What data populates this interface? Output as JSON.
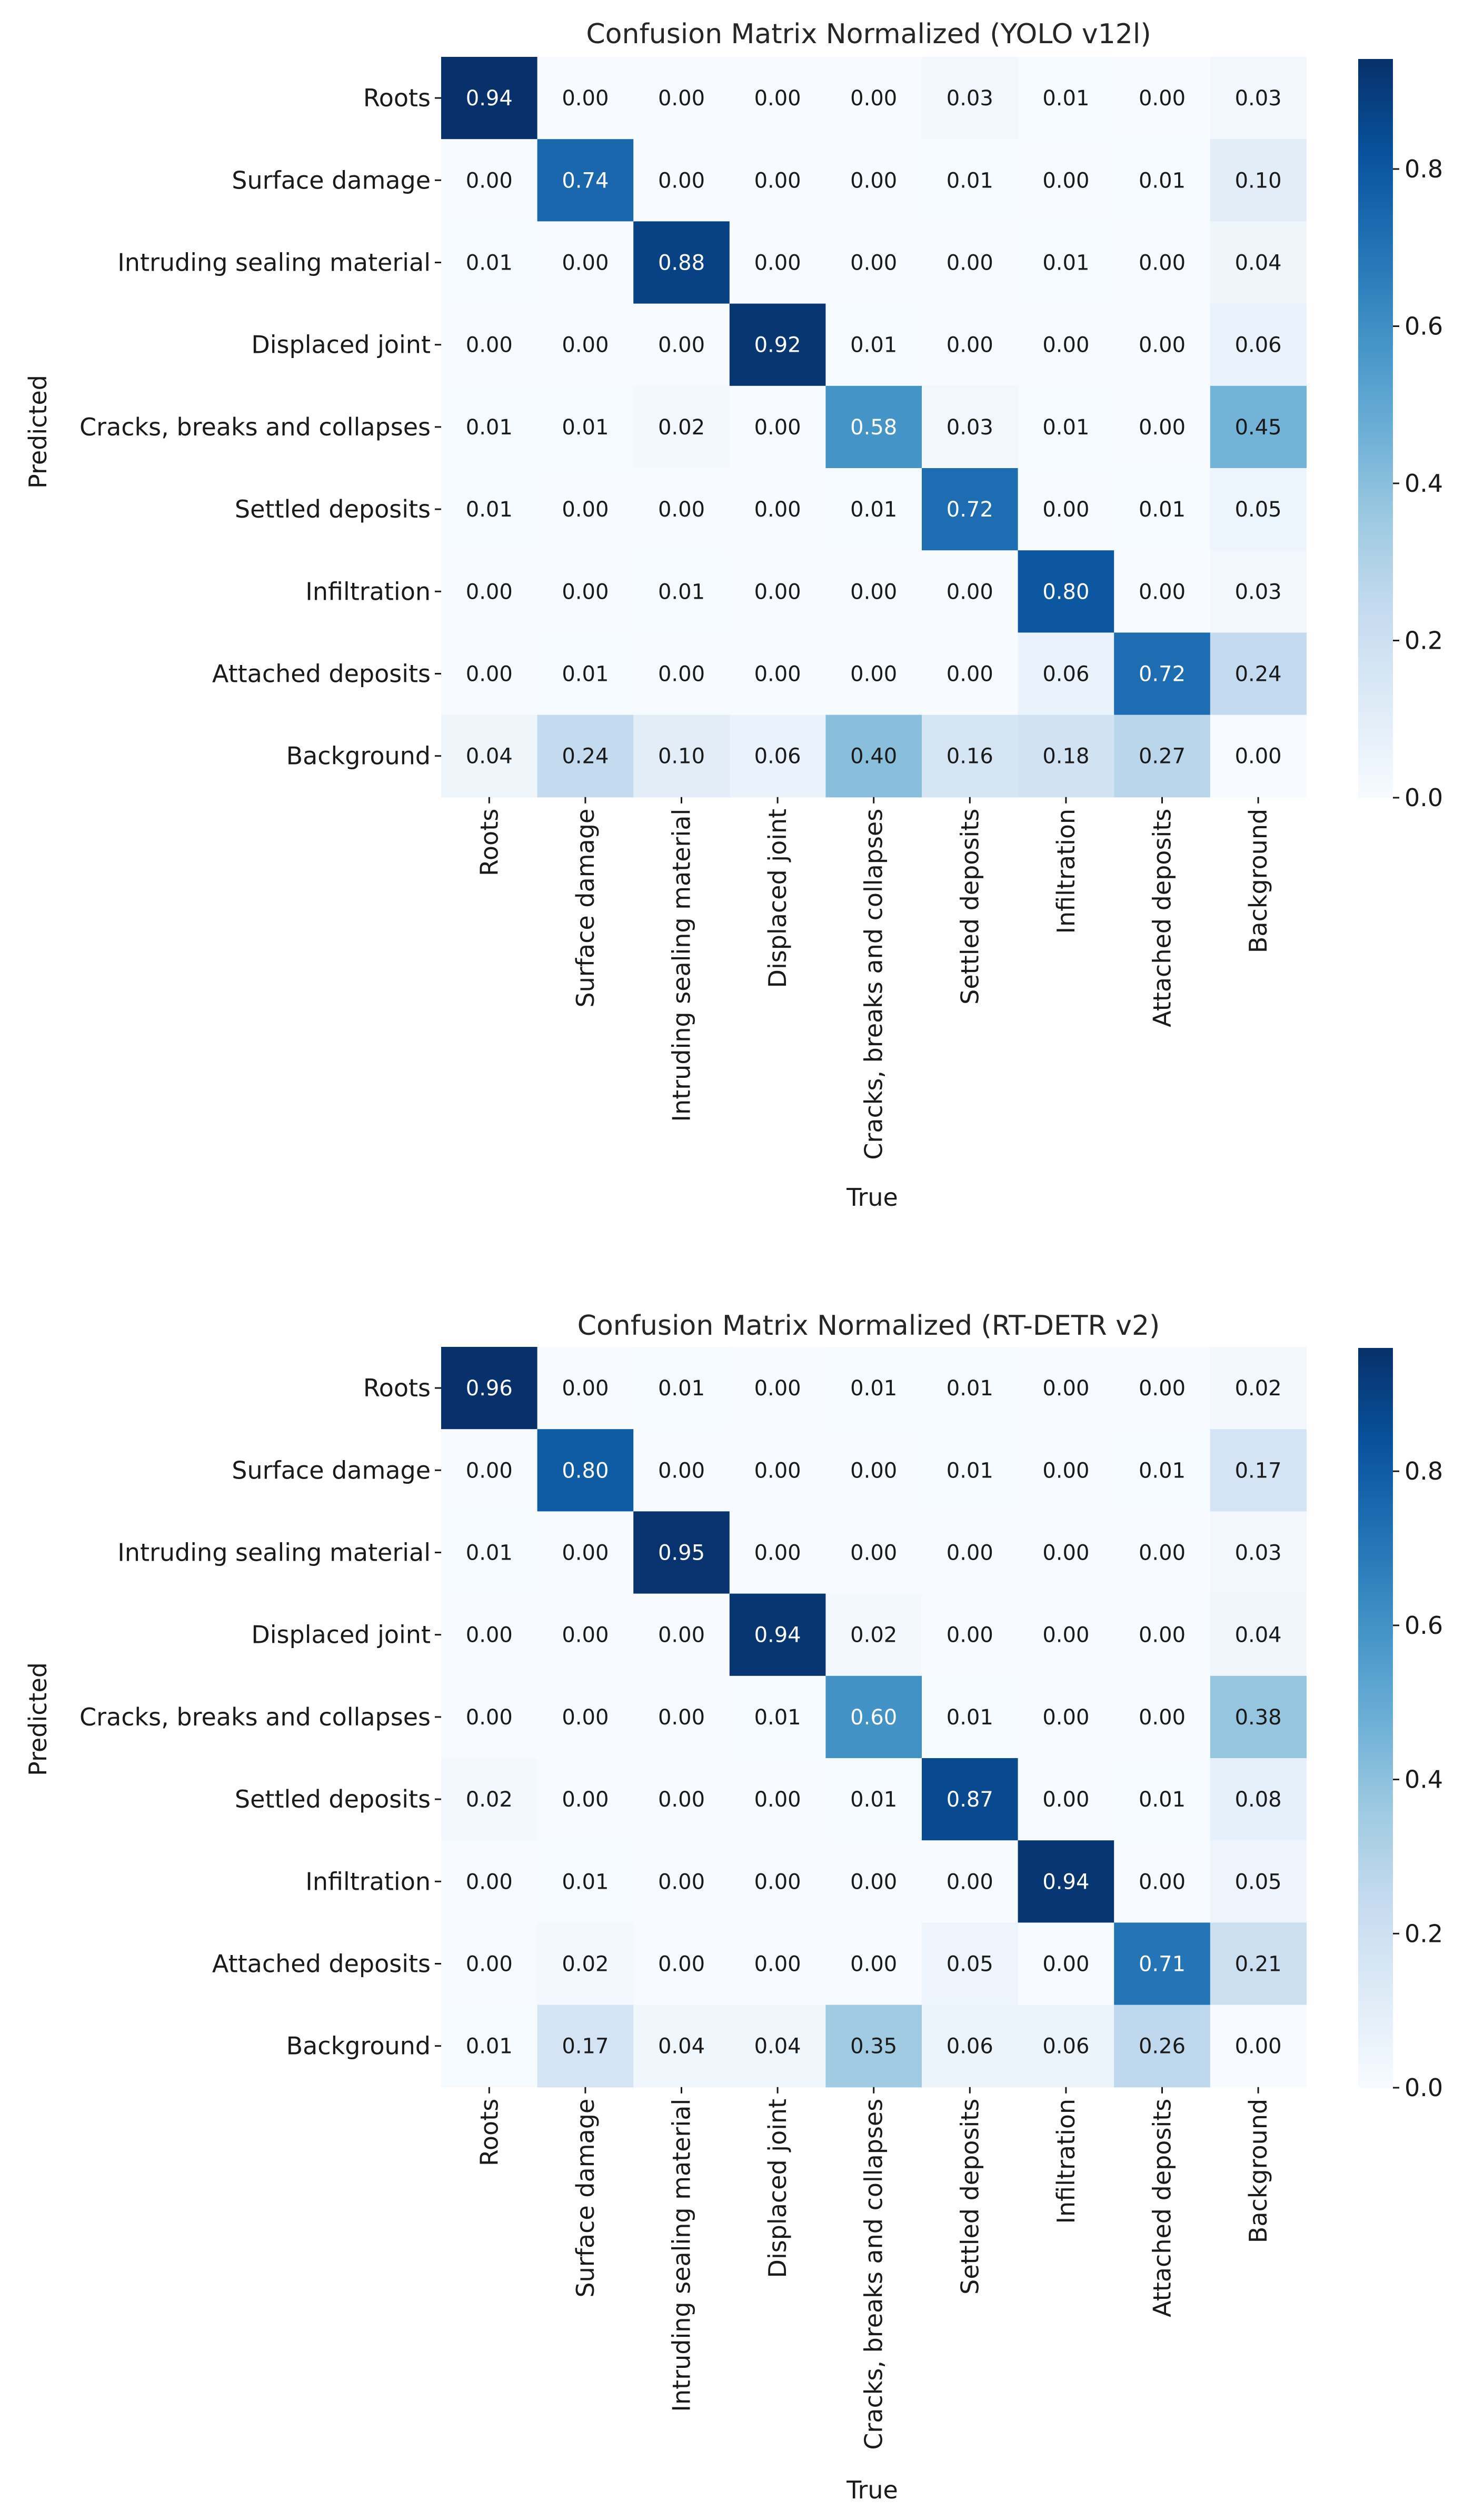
{
  "chart_data": [
    {
      "type": "heatmap",
      "title": "Confusion Matrix Normalized (YOLO v12l)",
      "xlabel": "True",
      "ylabel": "Predicted",
      "row_labels": [
        "Roots",
        "Surface damage",
        "Intruding sealing material",
        "Displaced joint",
        "Cracks, breaks and collapses",
        "Settled deposits",
        "Infiltration",
        "Attached deposits",
        "Background"
      ],
      "col_labels": [
        "Roots",
        "Surface damage",
        "Intruding sealing material",
        "Displaced joint",
        "Cracks, breaks and collapses",
        "Settled deposits",
        "Infiltration",
        "Attached deposits",
        "Background"
      ],
      "values": [
        [
          0.94,
          0.0,
          0.0,
          0.0,
          0.0,
          0.03,
          0.01,
          0.0,
          0.03
        ],
        [
          0.0,
          0.74,
          0.0,
          0.0,
          0.0,
          0.01,
          0.0,
          0.01,
          0.1
        ],
        [
          0.01,
          0.0,
          0.88,
          0.0,
          0.0,
          0.0,
          0.01,
          0.0,
          0.04
        ],
        [
          0.0,
          0.0,
          0.0,
          0.92,
          0.01,
          0.0,
          0.0,
          0.0,
          0.06
        ],
        [
          0.01,
          0.01,
          0.02,
          0.0,
          0.58,
          0.03,
          0.01,
          0.0,
          0.45
        ],
        [
          0.01,
          0.0,
          0.0,
          0.0,
          0.01,
          0.72,
          0.0,
          0.01,
          0.05
        ],
        [
          0.0,
          0.0,
          0.01,
          0.0,
          0.0,
          0.0,
          0.8,
          0.0,
          0.03
        ],
        [
          0.0,
          0.01,
          0.0,
          0.0,
          0.0,
          0.0,
          0.06,
          0.72,
          0.24
        ],
        [
          0.04,
          0.24,
          0.1,
          0.06,
          0.4,
          0.16,
          0.18,
          0.27,
          0.0
        ]
      ],
      "value_labels": [
        [
          "0.94",
          "0.00",
          "0.00",
          "0.00",
          "0.00",
          "0.03",
          "0.01",
          "0.00",
          "0.03"
        ],
        [
          "0.00",
          "0.74",
          "0.00",
          "0.00",
          "0.00",
          "0.01",
          "0.00",
          "0.01",
          "0.10"
        ],
        [
          "0.01",
          "0.00",
          "0.88",
          "0.00",
          "0.00",
          "0.00",
          "0.01",
          "0.00",
          "0.04"
        ],
        [
          "0.00",
          "0.00",
          "0.00",
          "0.92",
          "0.01",
          "0.00",
          "0.00",
          "0.00",
          "0.06"
        ],
        [
          "0.01",
          "0.01",
          "0.02",
          "0.00",
          "0.58",
          "0.03",
          "0.01",
          "0.00",
          "0.45"
        ],
        [
          "0.01",
          "0.00",
          "0.00",
          "0.00",
          "0.01",
          "0.72",
          "0.00",
          "0.01",
          "0.05"
        ],
        [
          "0.00",
          "0.00",
          "0.01",
          "0.00",
          "0.00",
          "0.00",
          "0.80",
          "0.00",
          "0.03"
        ],
        [
          "0.00",
          "0.01",
          "0.00",
          "0.00",
          "0.00",
          "0.00",
          "0.06",
          "0.72",
          "0.24"
        ],
        [
          "0.04",
          "0.24",
          "0.10",
          "0.06",
          "0.40",
          "0.16",
          "0.18",
          "0.27",
          "0.00"
        ]
      ],
      "colorbar": {
        "range": [
          0,
          0.94
        ],
        "ticks": [
          0.0,
          0.2,
          0.4,
          0.6,
          0.8
        ],
        "tick_labels": [
          "0.0",
          "0.2",
          "0.4",
          "0.6",
          "0.8"
        ],
        "colormap": "Blues"
      }
    },
    {
      "type": "heatmap",
      "title": "Confusion Matrix Normalized (RT-DETR v2)",
      "xlabel": "True",
      "ylabel": "Predicted",
      "row_labels": [
        "Roots",
        "Surface damage",
        "Intruding sealing material",
        "Displaced joint",
        "Cracks, breaks and collapses",
        "Settled deposits",
        "Infiltration",
        "Attached deposits",
        "Background"
      ],
      "col_labels": [
        "Roots",
        "Surface damage",
        "Intruding sealing material",
        "Displaced joint",
        "Cracks, breaks and collapses",
        "Settled deposits",
        "Infiltration",
        "Attached deposits",
        "Background"
      ],
      "values": [
        [
          0.96,
          0.0,
          0.01,
          0.0,
          0.01,
          0.01,
          0.0,
          0.0,
          0.02
        ],
        [
          0.0,
          0.8,
          0.0,
          0.0,
          0.0,
          0.01,
          0.0,
          0.01,
          0.17
        ],
        [
          0.01,
          0.0,
          0.95,
          0.0,
          0.0,
          0.0,
          0.0,
          0.0,
          0.03
        ],
        [
          0.0,
          0.0,
          0.0,
          0.94,
          0.02,
          0.0,
          0.0,
          0.0,
          0.04
        ],
        [
          0.0,
          0.0,
          0.0,
          0.01,
          0.6,
          0.01,
          0.0,
          0.0,
          0.38
        ],
        [
          0.02,
          0.0,
          0.0,
          0.0,
          0.01,
          0.87,
          0.0,
          0.01,
          0.08
        ],
        [
          0.0,
          0.01,
          0.0,
          0.0,
          0.0,
          0.0,
          0.94,
          0.0,
          0.05
        ],
        [
          0.0,
          0.02,
          0.0,
          0.0,
          0.0,
          0.05,
          0.0,
          0.71,
          0.21
        ],
        [
          0.01,
          0.17,
          0.04,
          0.04,
          0.35,
          0.06,
          0.06,
          0.26,
          0.0
        ]
      ],
      "value_labels": [
        [
          "0.96",
          "0.00",
          "0.01",
          "0.00",
          "0.01",
          "0.01",
          "0.00",
          "0.00",
          "0.02"
        ],
        [
          "0.00",
          "0.80",
          "0.00",
          "0.00",
          "0.00",
          "0.01",
          "0.00",
          "0.01",
          "0.17"
        ],
        [
          "0.01",
          "0.00",
          "0.95",
          "0.00",
          "0.00",
          "0.00",
          "0.00",
          "0.00",
          "0.03"
        ],
        [
          "0.00",
          "0.00",
          "0.00",
          "0.94",
          "0.02",
          "0.00",
          "0.00",
          "0.00",
          "0.04"
        ],
        [
          "0.00",
          "0.00",
          "0.00",
          "0.01",
          "0.60",
          "0.01",
          "0.00",
          "0.00",
          "0.38"
        ],
        [
          "0.02",
          "0.00",
          "0.00",
          "0.00",
          "0.01",
          "0.87",
          "0.00",
          "0.01",
          "0.08"
        ],
        [
          "0.00",
          "0.01",
          "0.00",
          "0.00",
          "0.00",
          "0.00",
          "0.94",
          "0.00",
          "0.05"
        ],
        [
          "0.00",
          "0.02",
          "0.00",
          "0.00",
          "0.00",
          "0.05",
          "0.00",
          "0.71",
          "0.21"
        ],
        [
          "0.01",
          "0.17",
          "0.04",
          "0.04",
          "0.35",
          "0.06",
          "0.06",
          "0.26",
          "0.00"
        ]
      ],
      "colorbar": {
        "range": [
          0,
          0.96
        ],
        "ticks": [
          0.0,
          0.2,
          0.4,
          0.6,
          0.8
        ],
        "tick_labels": [
          "0.0",
          "0.2",
          "0.4",
          "0.6",
          "0.8"
        ],
        "colormap": "Blues"
      }
    }
  ],
  "colors": {
    "text_dark": "#1a1a1a",
    "text_light": "#ffffff",
    "background": "#ffffff"
  }
}
